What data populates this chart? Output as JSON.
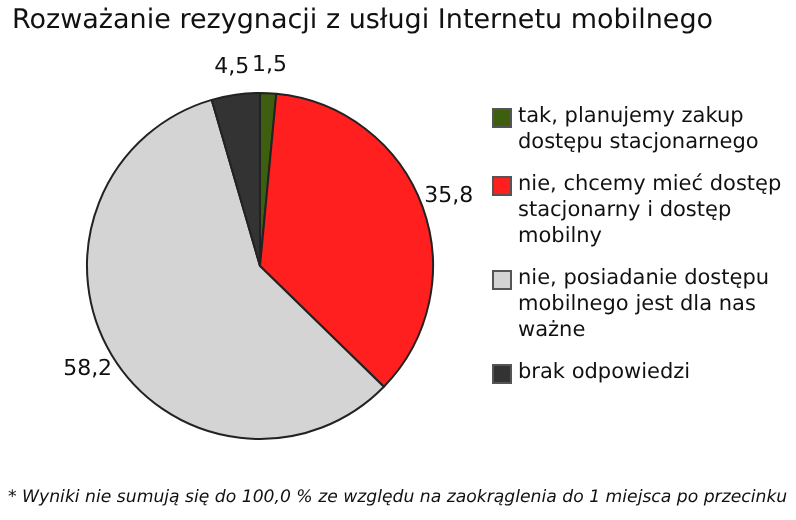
{
  "chart_data": {
    "type": "pie",
    "title": "Rozważanie rezygnacji z usługi Internetu mobilnego",
    "categories": [
      "tak, planujemy zakup dostępu stacjonarnego",
      "nie, chcemy mieć dostęp stacjonarny i dostęp mobilny",
      "nie, posiadanie dostępu mobilnego jest dla nas ważne",
      "brak odpowiedzi"
    ],
    "values": [
      1.5,
      35.8,
      58.2,
      4.5
    ],
    "value_labels": [
      "1,5",
      "35,8",
      "58,2",
      "4,5"
    ],
    "colors": [
      "#3f5f10",
      "#ff1f1f",
      "#d4d4d4",
      "#333333"
    ],
    "legend": "right",
    "annotations": [
      "* Wyniki nie sumują się do 100,0 % ze względu na zaokrąglenia do 1 miejsca po przecinku"
    ]
  }
}
